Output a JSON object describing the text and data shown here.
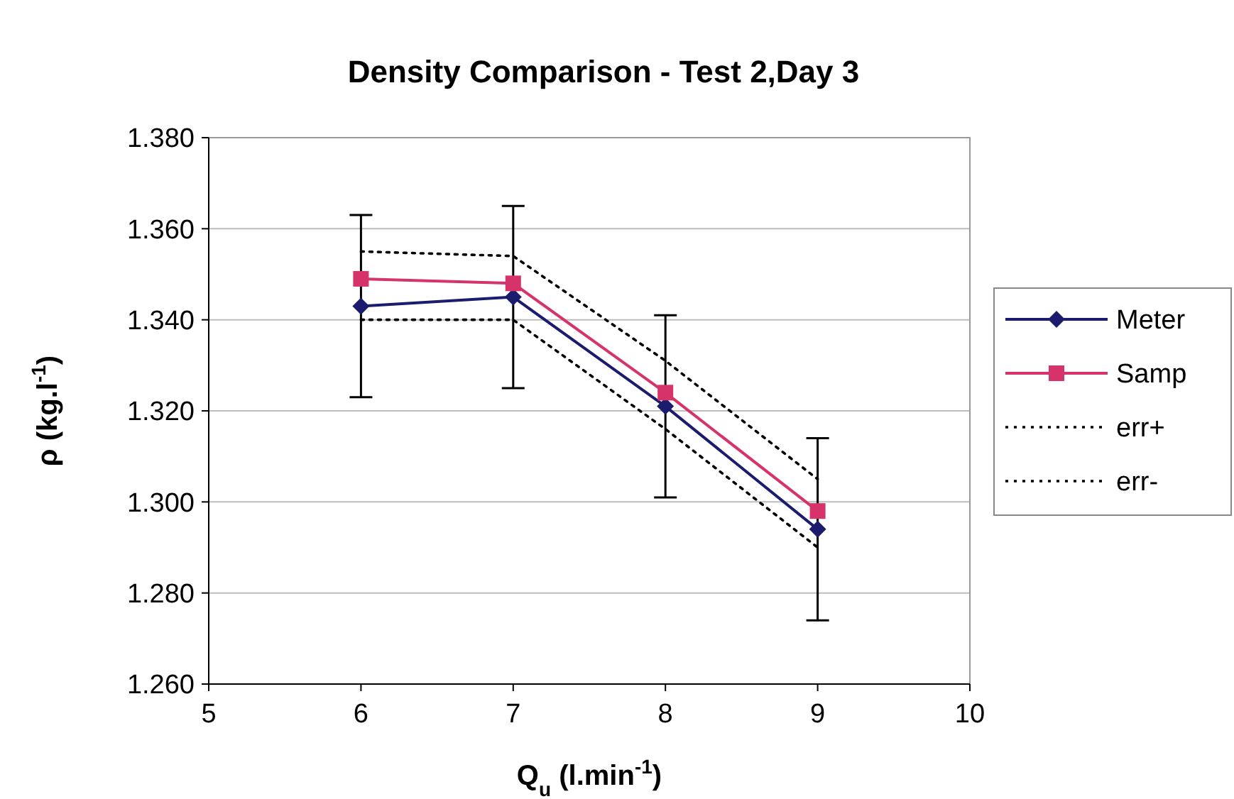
{
  "chart_data": {
    "type": "line",
    "title": "Density Comparison - Test 2,Day 3",
    "xlabel": "Q$_{u}$ (l.min$^{-1}$)",
    "ylabel": "ρ (kg.l$^{-1}$)",
    "x": [
      6,
      7,
      8,
      9
    ],
    "series": [
      {
        "name": "Meter",
        "color": "#1c1c6e",
        "values": [
          1.343,
          1.345,
          1.321,
          1.294
        ],
        "errors": [
          0.02,
          0.02,
          0.02,
          0.02
        ],
        "marker": "diamond",
        "line_style": "solid"
      },
      {
        "name": "Samp",
        "color": "#d6336b",
        "values": [
          1.349,
          1.348,
          1.324,
          1.298
        ],
        "marker": "square",
        "line_style": "solid"
      },
      {
        "name": "err+",
        "color": "#000000",
        "values": [
          1.355,
          1.354,
          1.331,
          1.305
        ],
        "marker": "none",
        "line_style": "dotted"
      },
      {
        "name": "err-",
        "color": "#000000",
        "values": [
          1.34,
          1.34,
          1.316,
          1.29
        ],
        "marker": "none",
        "line_style": "dotted"
      }
    ],
    "xlim": [
      5,
      10
    ],
    "xticks": [
      5,
      6,
      7,
      8,
      9,
      10
    ],
    "ylim": [
      1.26,
      1.38
    ],
    "yticks": [
      {
        "value": 1.26,
        "label": "1.260"
      },
      {
        "value": 1.28,
        "label": "1.280"
      },
      {
        "value": 1.3,
        "label": "1.300"
      },
      {
        "value": 1.32,
        "label": "1.320"
      },
      {
        "value": 1.34,
        "label": "1.340"
      },
      {
        "value": 1.36,
        "label": "1.360"
      },
      {
        "value": 1.38,
        "label": "1.380"
      }
    ],
    "grid": "y",
    "legend": "right"
  }
}
